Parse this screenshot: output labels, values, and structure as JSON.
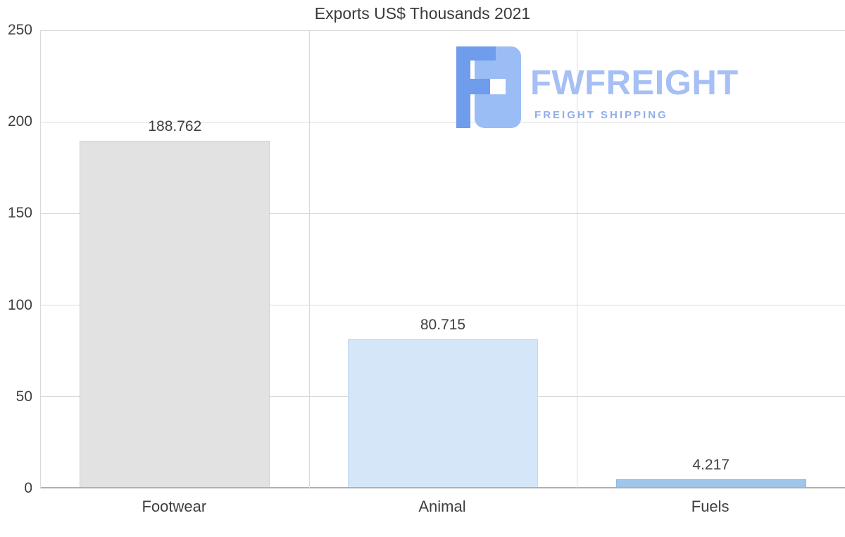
{
  "logo": {
    "brand": "FWFREIGHT",
    "tagline": "FREIGHT SHIPPING",
    "icon": "fwfreight-monogram-icon",
    "brand_color": "#a6c0f5",
    "tagline_color": "#92aee9"
  },
  "chart_data": {
    "type": "bar",
    "title": "Exports US$ Thousands 2021",
    "xlabel": "",
    "ylabel": "",
    "categories": [
      "Footwear",
      "Animal",
      "Fuels"
    ],
    "values": [
      188.762,
      80.715,
      4.217
    ],
    "value_labels": [
      "188.762",
      "80.715",
      "4.217"
    ],
    "bar_colors": [
      "#e2e2e2",
      "#d5e6f8",
      "#9fc5e8"
    ],
    "bar_border_colors": [
      "#d0d0d0",
      "#c3daf0",
      "#8fb8de"
    ],
    "ylim": [
      0,
      250
    ],
    "yticks": [
      0,
      50,
      100,
      150,
      200,
      250
    ],
    "grid": true,
    "legend": false
  }
}
